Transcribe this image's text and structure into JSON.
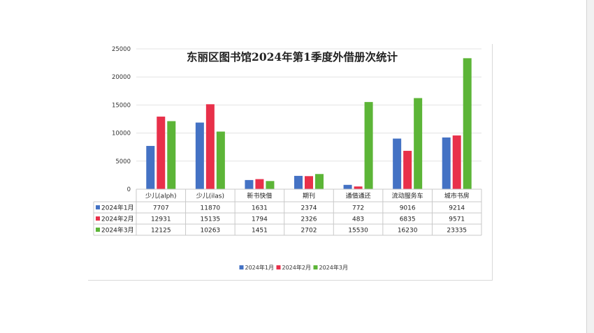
{
  "chart_data": {
    "type": "bar",
    "title": "东丽区图书馆2024年第1季度外借册次统计",
    "categories": [
      "少儿(alph)",
      "少儿(ilas)",
      "新书快借",
      "期刊",
      "通借通还",
      "流动服务车",
      "城市书房"
    ],
    "series": [
      {
        "name": "2024年1月",
        "color": "#4472c4",
        "values": [
          7707,
          11870,
          1631,
          2374,
          772,
          9016,
          9214
        ]
      },
      {
        "name": "2024年2月",
        "color": "#e8304a",
        "values": [
          12931,
          15135,
          1794,
          2326,
          483,
          6835,
          9571
        ]
      },
      {
        "name": "2024年3月",
        "color": "#5cb537",
        "values": [
          12125,
          10263,
          1451,
          2702,
          15530,
          16230,
          23335
        ]
      }
    ],
    "yticks": [
      "0",
      "5000",
      "10000",
      "15000",
      "20000",
      "25000"
    ],
    "ylim": [
      0,
      25000
    ],
    "grid": true,
    "legend_position": "bottom",
    "data_table": true
  }
}
